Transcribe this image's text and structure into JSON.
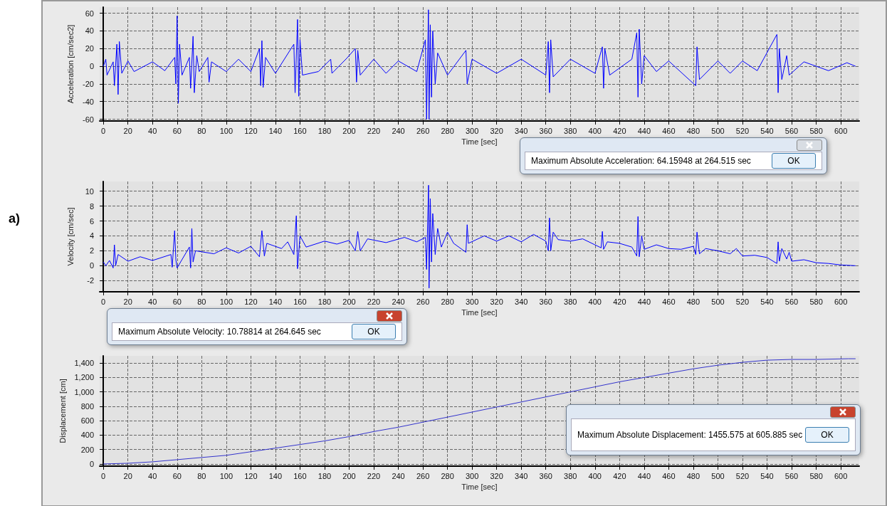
{
  "chart_data": [
    {
      "type": "line",
      "ylabel": "Acceleration [cm/sec2]",
      "xlabel": "Time [sec]",
      "xlim": [
        -3,
        615
      ],
      "ylim": [
        -62,
        67
      ],
      "xticks": [
        0,
        20,
        40,
        60,
        80,
        100,
        120,
        140,
        160,
        180,
        200,
        220,
        240,
        260,
        280,
        300,
        320,
        340,
        360,
        380,
        400,
        420,
        440,
        460,
        480,
        500,
        520,
        540,
        560,
        580,
        600
      ],
      "yticks": [
        -60,
        -40,
        -20,
        0,
        20,
        40,
        60
      ],
      "grid": true,
      "line_style": "solid",
      "annotations": [
        "Maximum Absolute Acceleration: 64.15948 at 264.515 sec",
        "OK"
      ],
      "series": [
        {
          "color": "#0000ff",
          "x": [
            0,
            2,
            3,
            8,
            9,
            11,
            12,
            13,
            15,
            20,
            25,
            40,
            50,
            58,
            59,
            60,
            61,
            62,
            64,
            70,
            71,
            73,
            74,
            76,
            78,
            85,
            86,
            88,
            100,
            110,
            120,
            127,
            128,
            129,
            130,
            132,
            140,
            155,
            156,
            158,
            159,
            160,
            162,
            175,
            185,
            186,
            198,
            205,
            206,
            207,
            209,
            220,
            230,
            240,
            255,
            262,
            263,
            264.5,
            265,
            266,
            267,
            268,
            270,
            272,
            280,
            295,
            296,
            300,
            320,
            340,
            360,
            362,
            363,
            364,
            366,
            380,
            400,
            406,
            407,
            408,
            412,
            430,
            434,
            435,
            436,
            438,
            440,
            450,
            460,
            482,
            483,
            485,
            500,
            510,
            520,
            532,
            548,
            549,
            550,
            552,
            556,
            558,
            570,
            590,
            605,
            612
          ],
          "values": [
            0,
            8,
            -10,
            5,
            -22,
            25,
            -32,
            28,
            -8,
            6,
            -6,
            5,
            -5,
            10,
            -20,
            57,
            -42,
            25,
            -10,
            10,
            -25,
            34,
            -30,
            12,
            -6,
            10,
            -18,
            5,
            -6,
            8,
            -6,
            20,
            -22,
            29,
            -24,
            10,
            -8,
            25,
            -30,
            53,
            -34,
            30,
            -10,
            -6,
            8,
            -8,
            9,
            20,
            -18,
            18,
            -10,
            8,
            -8,
            6,
            -6,
            30,
            -60,
            64,
            -60,
            47,
            -35,
            40,
            -20,
            15,
            -10,
            18,
            -20,
            8,
            -8,
            8,
            -10,
            28,
            -30,
            30,
            -12,
            8,
            -8,
            22,
            -25,
            20,
            -10,
            8,
            38,
            -35,
            42,
            -20,
            12,
            -6,
            6,
            -22,
            22,
            -15,
            6,
            -8,
            6,
            -5,
            36,
            -30,
            20,
            -15,
            12,
            -10,
            5,
            -5,
            4,
            0
          ]
        }
      ]
    },
    {
      "type": "line",
      "ylabel": "Velocity [cm/sec]",
      "xlabel": "Time [sec]",
      "xlim": [
        -3,
        615
      ],
      "ylim": [
        -3.5,
        11.3
      ],
      "xticks": [
        0,
        20,
        40,
        60,
        80,
        100,
        120,
        140,
        160,
        180,
        200,
        220,
        240,
        260,
        280,
        300,
        320,
        340,
        360,
        380,
        400,
        420,
        440,
        460,
        480,
        500,
        520,
        540,
        560,
        580,
        600
      ],
      "yticks": [
        -2,
        0,
        2,
        4,
        6,
        8,
        10
      ],
      "grid": true,
      "line_style": "solid",
      "annotations": [
        "Maximum Absolute Velocity: 10.78814 at 264.645 sec",
        "OK",
        "a)"
      ],
      "series": [
        {
          "color": "#0000ff",
          "x": [
            0,
            2,
            5,
            8,
            9,
            10,
            12,
            20,
            30,
            40,
            55,
            56,
            58,
            59,
            60,
            70,
            71,
            72,
            73,
            75,
            90,
            100,
            110,
            120,
            127,
            129,
            131,
            133,
            145,
            150,
            155,
            157,
            158,
            160,
            165,
            180,
            190,
            200,
            205,
            207,
            209,
            215,
            230,
            245,
            255,
            262,
            263,
            264.6,
            265,
            266,
            267,
            268,
            270,
            272,
            275,
            280,
            285,
            295,
            296,
            297,
            310,
            320,
            330,
            340,
            350,
            360,
            362,
            363,
            364,
            366,
            370,
            380,
            390,
            400,
            405,
            406,
            407,
            410,
            420,
            430,
            434,
            435,
            436,
            438,
            440,
            450,
            460,
            470,
            480,
            482,
            483,
            485,
            490,
            500,
            510,
            515,
            520,
            530,
            540,
            548,
            549,
            550,
            552,
            556,
            558,
            560,
            570,
            580,
            590,
            600,
            612
          ],
          "values": [
            0.5,
            0,
            0.7,
            -0.3,
            2.8,
            0,
            1.5,
            0.6,
            1.2,
            0.7,
            1.5,
            -0.2,
            4.7,
            0.8,
            -0.3,
            2.5,
            -0.3,
            5,
            0.5,
            2,
            1.6,
            2.4,
            1.7,
            2.6,
            1.2,
            4.7,
            1.3,
            3,
            2.3,
            3.2,
            1.5,
            6.7,
            -0.4,
            4,
            2.5,
            3.3,
            2.9,
            3.4,
            2,
            4.6,
            2,
            3.6,
            3.1,
            3.8,
            3.2,
            3.8,
            -0.5,
            10.8,
            -3,
            9,
            0.5,
            7,
            1.5,
            5,
            2.5,
            4.5,
            3,
            1.8,
            5.5,
            3,
            4,
            3.3,
            4,
            3.2,
            4.2,
            3.3,
            2,
            6.4,
            2,
            4.5,
            3.5,
            3.3,
            3.6,
            2.8,
            2.4,
            4.6,
            2.2,
            3.2,
            3,
            2.5,
            1.3,
            6.6,
            1.2,
            4,
            2.2,
            2.8,
            2.3,
            2.2,
            2.6,
            1.5,
            4.5,
            1.6,
            2.3,
            2,
            1.6,
            2.3,
            1.3,
            1.4,
            1.1,
            0.3,
            3.2,
            0.6,
            2.3,
            0.9,
            1.8,
            0.6,
            0.8,
            0.4,
            0.3,
            0.1,
            0
          ]
        }
      ]
    },
    {
      "type": "line",
      "ylabel": "Displacement [cm]",
      "xlabel": "Time [sec]",
      "xlim": [
        -3,
        615
      ],
      "ylim": [
        -30,
        1500
      ],
      "xticks": [
        0,
        20,
        40,
        60,
        80,
        100,
        120,
        140,
        160,
        180,
        200,
        220,
        240,
        260,
        280,
        300,
        320,
        340,
        360,
        380,
        400,
        420,
        440,
        460,
        480,
        500,
        520,
        540,
        560,
        580,
        600
      ],
      "yticks": [
        0,
        200,
        400,
        600,
        800,
        {
          "value": 1000,
          "label": "1,000"
        },
        {
          "value": 1200,
          "label": "1,200"
        },
        {
          "value": 1400,
          "label": "1,400"
        }
      ],
      "grid": true,
      "line_style": "solid",
      "annotations": [
        "Maximum Absolute Displacement: 1455.575 at 605.885 sec",
        "OK"
      ],
      "series": [
        {
          "color": "#3333cc",
          "x": [
            0,
            20,
            40,
            60,
            80,
            100,
            120,
            140,
            160,
            180,
            200,
            220,
            240,
            260,
            280,
            300,
            320,
            340,
            360,
            380,
            400,
            420,
            440,
            460,
            480,
            500,
            520,
            540,
            560,
            580,
            606,
            612
          ],
          "values": [
            0,
            10,
            30,
            60,
            90,
            120,
            170,
            220,
            270,
            320,
            380,
            450,
            510,
            580,
            650,
            720,
            790,
            860,
            930,
            1000,
            1070,
            1140,
            1200,
            1260,
            1320,
            1370,
            1410,
            1440,
            1450,
            1450,
            1460,
            1460
          ]
        }
      ]
    }
  ]
}
